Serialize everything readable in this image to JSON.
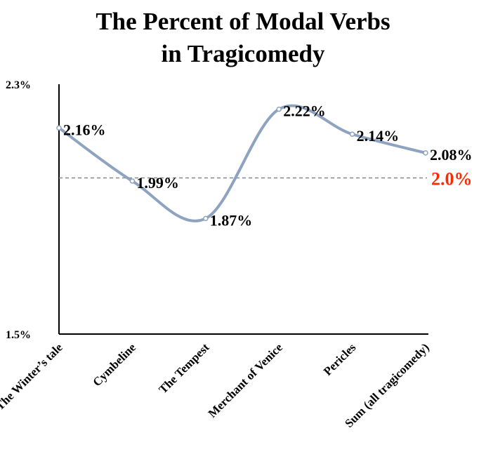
{
  "chart_data": {
    "type": "line",
    "title": [
      "The Percent of Modal Verbs",
      "in Tragicomedy"
    ],
    "categories": [
      "The Winter’s tale",
      "Cymbeline",
      "The Tempest",
      "Merchant of Venice",
      "Pericles",
      "Sum (all tragicomedy)"
    ],
    "series": [
      {
        "name": "Percent of modal verbs",
        "color": "#8ea3bf",
        "values": [
          2.16,
          1.99,
          1.87,
          2.22,
          2.14,
          2.08
        ],
        "value_labels": [
          "2.16%",
          "1.99%",
          "1.87%",
          "2.22%",
          "2.14%",
          "2.08%"
        ]
      }
    ],
    "ylim": [
      1.5,
      2.3
    ],
    "yticks": [
      {
        "value": 1.5,
        "label": "1.5%"
      },
      {
        "value": 2.3,
        "label": "2.3%"
      }
    ],
    "smooth": true,
    "reference_line": {
      "value": 2.0,
      "label": "2.0%",
      "color": "#ff2a00"
    }
  }
}
